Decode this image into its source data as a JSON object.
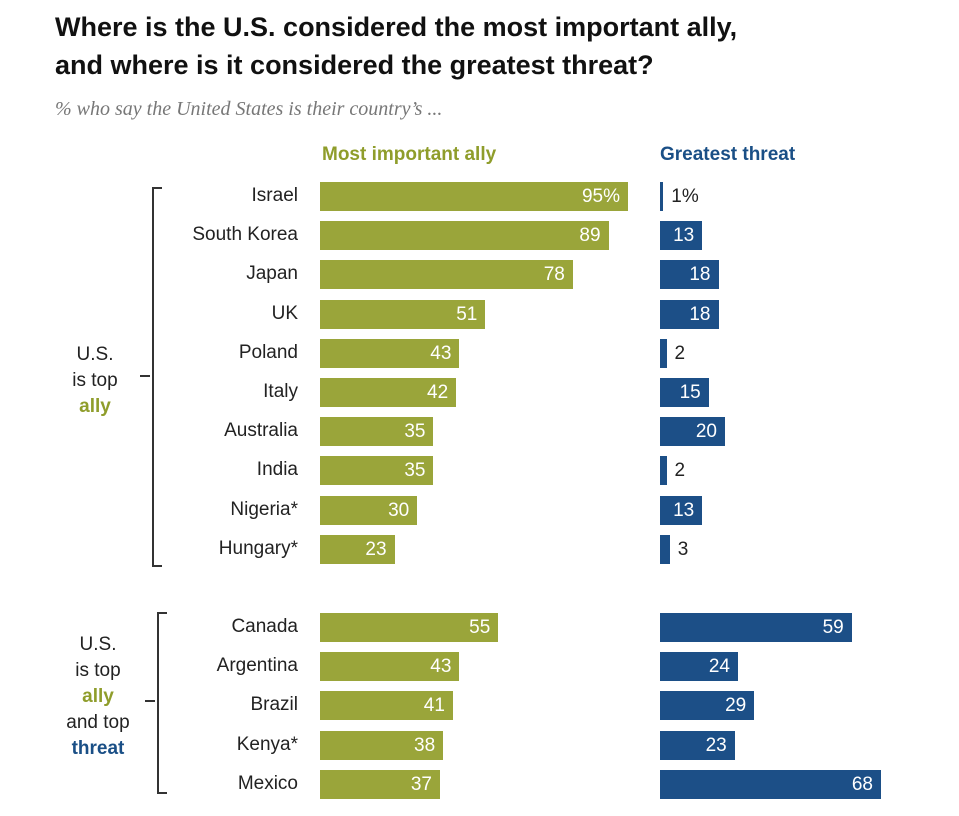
{
  "title_line1": "Where is the U.S. considered the most important ally,",
  "title_line2": "and where is it considered the greatest threat?",
  "subtitle": "% who say the United States is their country’s ...",
  "colors": {
    "ally": "#9aa53a",
    "threat": "#1c4f87"
  },
  "groups": [
    {
      "label_lines": [
        "U.S.",
        "is top"
      ],
      "label_ally": "ally"
    },
    {
      "label_lines": [
        "U.S.",
        "is top"
      ],
      "label_ally": "ally",
      "label_and": "and top",
      "label_threat": "threat"
    }
  ],
  "chart_data": {
    "type": "bar",
    "orientation": "horizontal",
    "title": "Where is the U.S. considered the most important ally, and where is it considered the greatest threat?",
    "series": [
      {
        "name": "Most important ally",
        "values": [
          95,
          89,
          78,
          51,
          43,
          42,
          35,
          35,
          30,
          23,
          55,
          43,
          41,
          38,
          37
        ]
      },
      {
        "name": "Greatest threat",
        "values": [
          1,
          13,
          18,
          18,
          2,
          15,
          20,
          2,
          13,
          3,
          59,
          24,
          29,
          23,
          68
        ]
      }
    ],
    "categories": [
      "Israel",
      "South Korea",
      "Japan",
      "UK",
      "Poland",
      "Italy",
      "Australia",
      "India",
      "Nigeria*",
      "Hungary*",
      "Canada",
      "Argentina",
      "Brazil",
      "Kenya*",
      "Mexico"
    ],
    "value_labels": {
      "ally": [
        "95%",
        "89",
        "78",
        "51",
        "43",
        "42",
        "35",
        "35",
        "30",
        "23",
        "55",
        "43",
        "41",
        "38",
        "37"
      ],
      "threat": [
        "1%",
        "13",
        "18",
        "18",
        "2",
        "15",
        "20",
        "2",
        "13",
        "3",
        "59",
        "24",
        "29",
        "23",
        "68"
      ]
    },
    "group_index": [
      0,
      0,
      0,
      0,
      0,
      0,
      0,
      0,
      0,
      0,
      1,
      1,
      1,
      1,
      1
    ],
    "xlabel": "",
    "ylabel": ""
  }
}
